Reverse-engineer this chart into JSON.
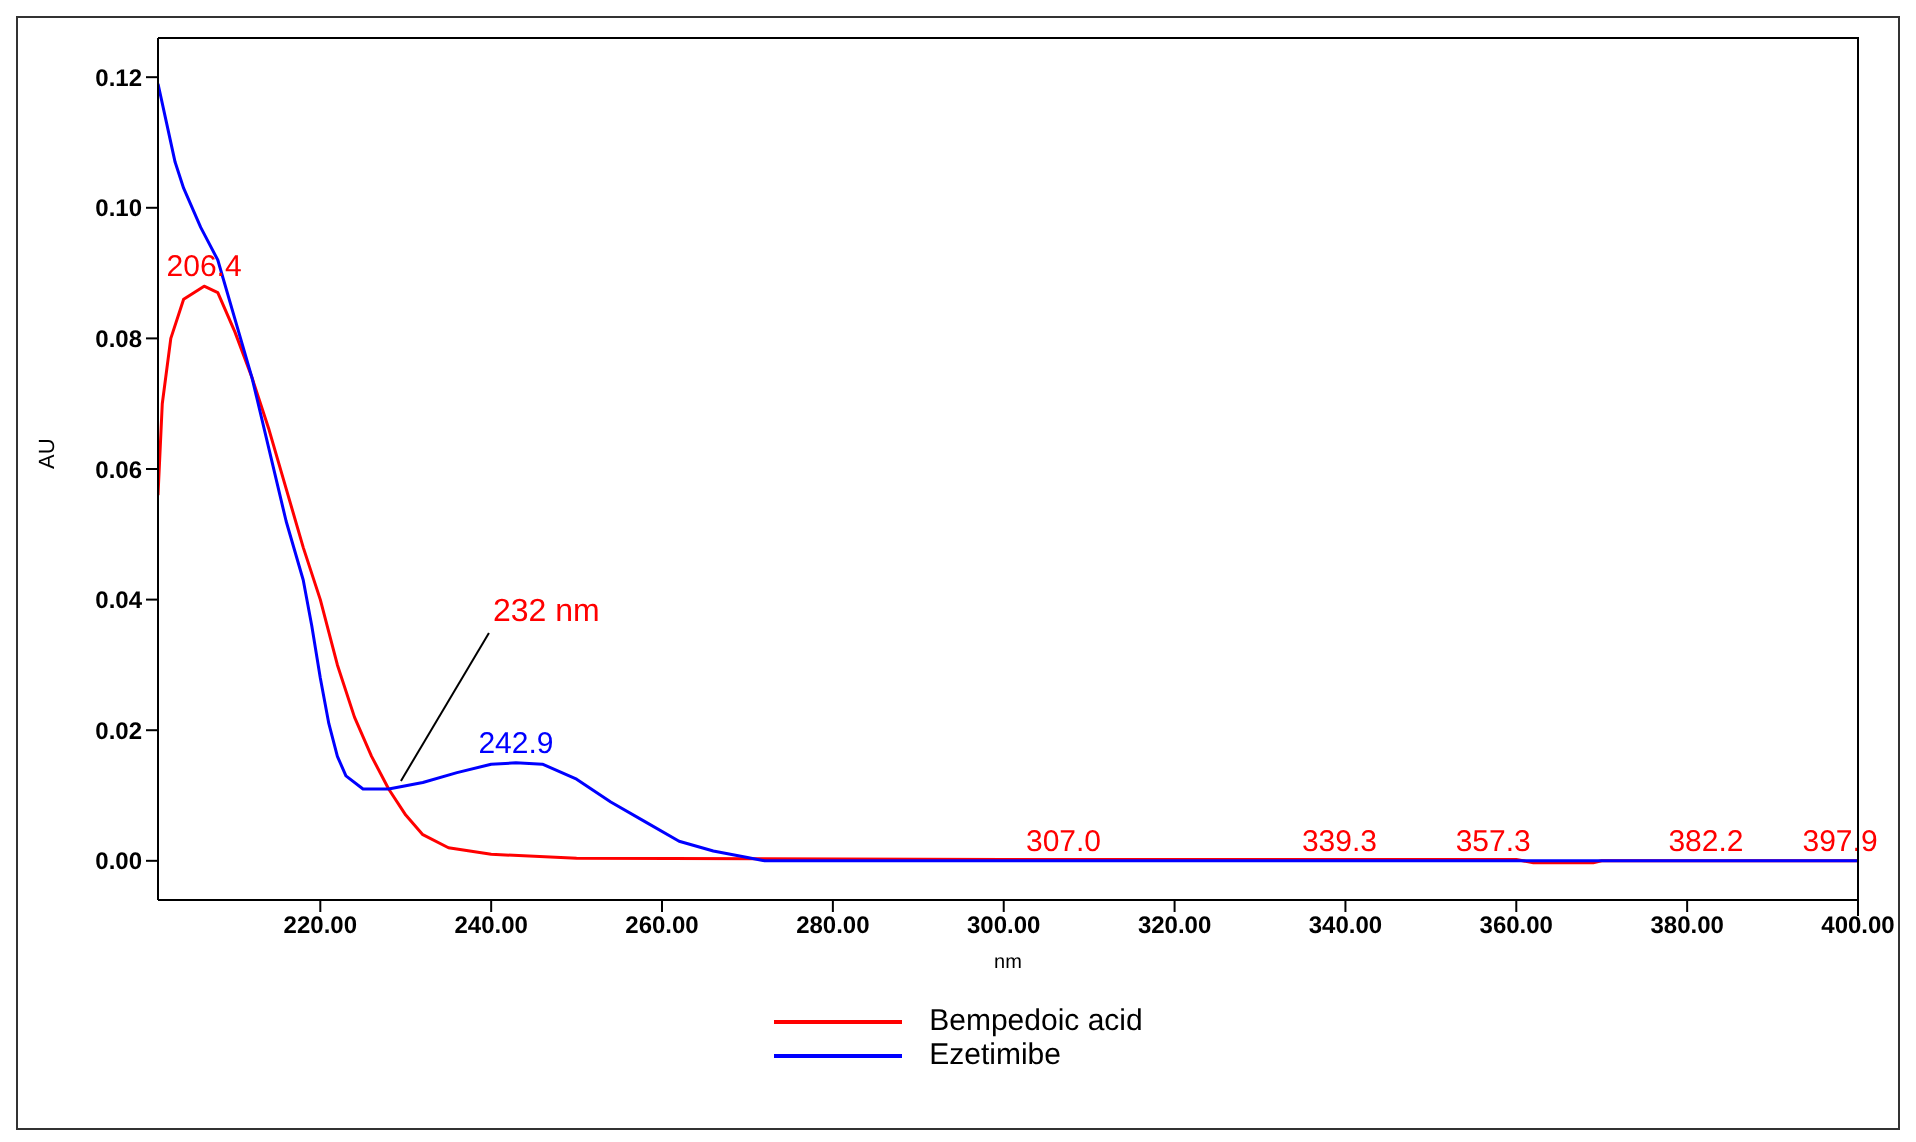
{
  "chart_data": {
    "type": "line",
    "xlabel": "nm",
    "ylabel": "AU",
    "xlim": [
      201,
      400
    ],
    "ylim": [
      -0.006,
      0.126
    ],
    "xticks": [
      {
        "value": 220,
        "label": "220.00"
      },
      {
        "value": 240,
        "label": "240.00"
      },
      {
        "value": 260,
        "label": "260.00"
      },
      {
        "value": 280,
        "label": "280.00"
      },
      {
        "value": 300,
        "label": "300.00"
      },
      {
        "value": 320,
        "label": "320.00"
      },
      {
        "value": 340,
        "label": "340.00"
      },
      {
        "value": 360,
        "label": "360.00"
      },
      {
        "value": 380,
        "label": "380.00"
      },
      {
        "value": 400,
        "label": "400.00"
      }
    ],
    "yticks": [
      {
        "value": 0,
        "label": "0.00"
      },
      {
        "value": 0.02,
        "label": "0.02"
      },
      {
        "value": 0.04,
        "label": "0.04"
      },
      {
        "value": 0.06,
        "label": "0.06"
      },
      {
        "value": 0.08,
        "label": "0.08"
      },
      {
        "value": 0.1,
        "label": "0.10"
      },
      {
        "value": 0.12,
        "label": "0.12"
      }
    ],
    "grid": false,
    "legend": "bottom",
    "marker": "none",
    "line_style": "solid",
    "series": [
      {
        "name": "Bempedoic acid",
        "color": "#ff0000",
        "x": [
          201,
          201.5,
          202.5,
          204,
          206.4,
          208,
          210,
          212,
          214,
          216,
          218,
          220,
          222,
          224,
          226,
          228,
          230,
          232,
          235,
          240,
          250,
          300,
          360,
          362,
          369,
          370,
          400
        ],
        "values": [
          0.056,
          0.07,
          0.08,
          0.086,
          0.088,
          0.087,
          0.081,
          0.074,
          0.066,
          0.057,
          0.048,
          0.04,
          0.03,
          0.022,
          0.016,
          0.011,
          0.007,
          0.004,
          0.002,
          0.001,
          0.0004,
          0.0002,
          0.0002,
          -0.0003,
          -0.0003,
          0,
          0
        ]
      },
      {
        "name": "Ezetimibe",
        "color": "#0000ff",
        "x": [
          201,
          202,
          203,
          204,
          206,
          208,
          210,
          212,
          214,
          216,
          218,
          219,
          220,
          221,
          222,
          223,
          225,
          228,
          232,
          236,
          240,
          242.9,
          246,
          250,
          254,
          258,
          262,
          266,
          270,
          272,
          400
        ],
        "values": [
          0.119,
          0.113,
          0.107,
          0.103,
          0.097,
          0.092,
          0.083,
          0.074,
          0.063,
          0.052,
          0.043,
          0.036,
          0.028,
          0.021,
          0.016,
          0.013,
          0.011,
          0.011,
          0.012,
          0.0135,
          0.0148,
          0.015,
          0.0148,
          0.0125,
          0.009,
          0.006,
          0.003,
          0.0015,
          0.0005,
          0,
          0
        ]
      }
    ],
    "annotations": [
      {
        "text": "206.4",
        "x": 206.4,
        "y": 0.088
      },
      {
        "text": "242.9",
        "x": 242.9,
        "y": 0.015
      },
      {
        "text": "232 nm",
        "x": 228.5,
        "y": 0.011
      },
      {
        "text": "307.0",
        "x": 307,
        "y": 0
      },
      {
        "text": "339.3",
        "x": 339.3,
        "y": 0
      },
      {
        "text": "357.3",
        "x": 357.3,
        "y": 0
      },
      {
        "text": "382.2",
        "x": 382.2,
        "y": 0
      },
      {
        "text": "397.9",
        "x": 397.9,
        "y": 0
      }
    ]
  }
}
